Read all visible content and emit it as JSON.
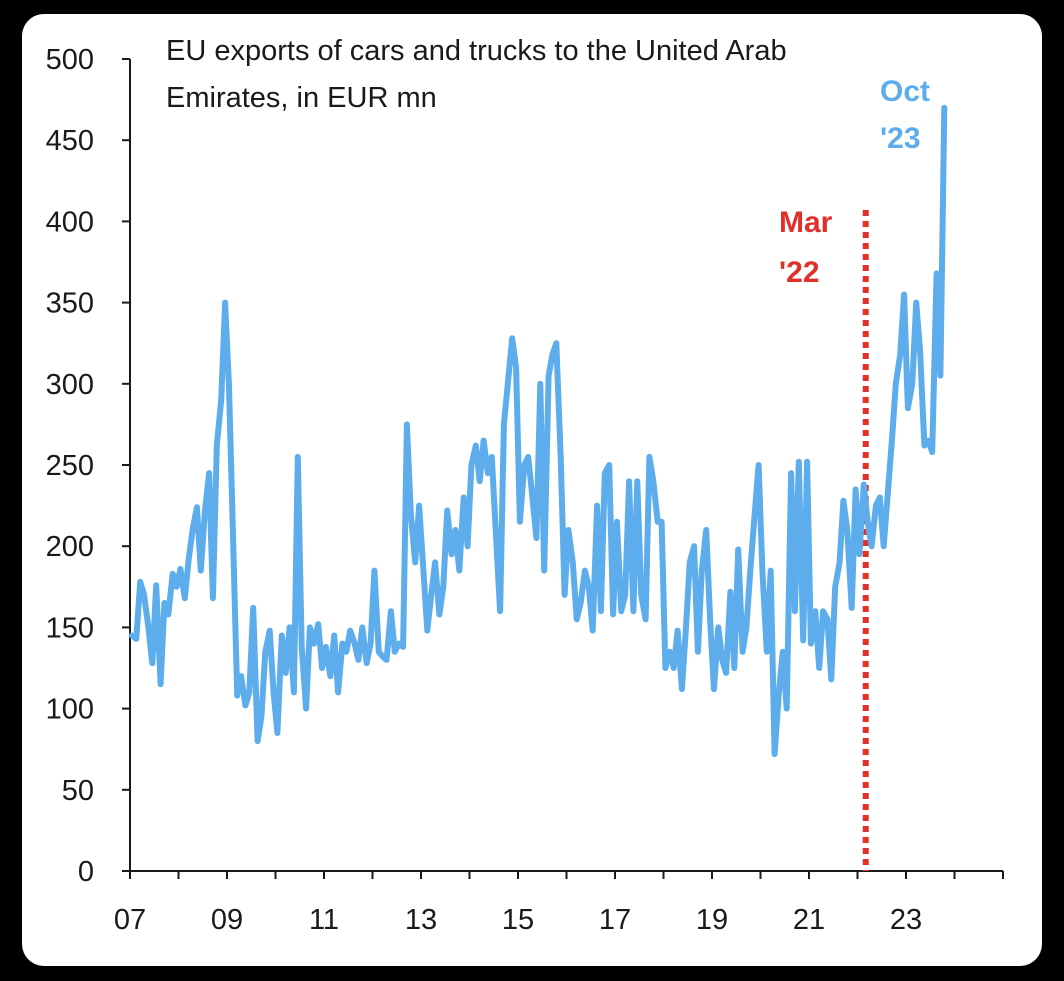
{
  "colors": {
    "series": "#5DADEC",
    "marker": "#E0302A",
    "axis": "#1a1a1a"
  },
  "chart_data": {
    "type": "line",
    "title_lines": [
      "EU exports of cars and trucks to the United Arab",
      "Emirates, in EUR mn"
    ],
    "xlabel": "",
    "ylabel": "",
    "xlim": [
      2007.0,
      2025.0
    ],
    "ylim": [
      0,
      500
    ],
    "y_ticks": [
      "0",
      "50",
      "100",
      "150",
      "200",
      "250",
      "300",
      "350",
      "400",
      "450",
      "500"
    ],
    "x_ticks": [
      "07",
      "09",
      "11",
      "13",
      "15",
      "17",
      "19",
      "21",
      "23"
    ],
    "grid": false,
    "legend": "none",
    "annotations": [
      {
        "lines": [
          "Mar",
          "'22"
        ],
        "x": 2022.17,
        "type": "vertical-dotted-line",
        "color": "#E0302A"
      },
      {
        "lines": [
          "Oct",
          "'23"
        ],
        "x": 2023.75,
        "type": "label",
        "color": "#5DADEC"
      }
    ],
    "series": [
      {
        "points": [
          [
            2007.04,
            145
          ],
          [
            2007.13,
            143
          ],
          [
            2007.21,
            178
          ],
          [
            2007.29,
            170
          ],
          [
            2007.38,
            150
          ],
          [
            2007.46,
            128
          ],
          [
            2007.54,
            176
          ],
          [
            2007.63,
            115
          ],
          [
            2007.71,
            165
          ],
          [
            2007.79,
            158
          ],
          [
            2007.88,
            183
          ],
          [
            2007.96,
            175
          ],
          [
            2008.04,
            186
          ],
          [
            2008.13,
            168
          ],
          [
            2008.21,
            192
          ],
          [
            2008.29,
            210
          ],
          [
            2008.38,
            224
          ],
          [
            2008.46,
            185
          ],
          [
            2008.54,
            220
          ],
          [
            2008.63,
            245
          ],
          [
            2008.71,
            168
          ],
          [
            2008.79,
            262
          ],
          [
            2008.88,
            290
          ],
          [
            2008.96,
            350
          ],
          [
            2009.04,
            300
          ],
          [
            2009.13,
            200
          ],
          [
            2009.21,
            108
          ],
          [
            2009.29,
            120
          ],
          [
            2009.38,
            102
          ],
          [
            2009.46,
            110
          ],
          [
            2009.54,
            162
          ],
          [
            2009.63,
            80
          ],
          [
            2009.71,
            95
          ],
          [
            2009.79,
            135
          ],
          [
            2009.88,
            148
          ],
          [
            2009.96,
            110
          ],
          [
            2010.04,
            85
          ],
          [
            2010.13,
            145
          ],
          [
            2010.21,
            122
          ],
          [
            2010.29,
            150
          ],
          [
            2010.38,
            110
          ],
          [
            2010.46,
            255
          ],
          [
            2010.54,
            138
          ],
          [
            2010.63,
            100
          ],
          [
            2010.71,
            150
          ],
          [
            2010.79,
            140
          ],
          [
            2010.88,
            152
          ],
          [
            2010.96,
            125
          ],
          [
            2011.04,
            138
          ],
          [
            2011.13,
            120
          ],
          [
            2011.21,
            145
          ],
          [
            2011.29,
            110
          ],
          [
            2011.38,
            140
          ],
          [
            2011.46,
            135
          ],
          [
            2011.54,
            148
          ],
          [
            2011.63,
            140
          ],
          [
            2011.71,
            130
          ],
          [
            2011.79,
            150
          ],
          [
            2011.88,
            128
          ],
          [
            2011.96,
            140
          ],
          [
            2012.04,
            185
          ],
          [
            2012.13,
            135
          ],
          [
            2012.21,
            132
          ],
          [
            2012.29,
            130
          ],
          [
            2012.38,
            160
          ],
          [
            2012.46,
            135
          ],
          [
            2012.54,
            140
          ],
          [
            2012.63,
            138
          ],
          [
            2012.71,
            275
          ],
          [
            2012.79,
            220
          ],
          [
            2012.88,
            190
          ],
          [
            2012.96,
            225
          ],
          [
            2013.04,
            190
          ],
          [
            2013.13,
            148
          ],
          [
            2013.21,
            170
          ],
          [
            2013.29,
            190
          ],
          [
            2013.38,
            158
          ],
          [
            2013.46,
            175
          ],
          [
            2013.54,
            222
          ],
          [
            2013.63,
            195
          ],
          [
            2013.71,
            210
          ],
          [
            2013.79,
            185
          ],
          [
            2013.88,
            230
          ],
          [
            2013.96,
            200
          ],
          [
            2014.04,
            250
          ],
          [
            2014.13,
            262
          ],
          [
            2014.21,
            240
          ],
          [
            2014.29,
            265
          ],
          [
            2014.38,
            245
          ],
          [
            2014.46,
            255
          ],
          [
            2014.54,
            210
          ],
          [
            2014.63,
            160
          ],
          [
            2014.71,
            275
          ],
          [
            2014.79,
            300
          ],
          [
            2014.88,
            328
          ],
          [
            2014.96,
            310
          ],
          [
            2015.04,
            215
          ],
          [
            2015.13,
            250
          ],
          [
            2015.21,
            255
          ],
          [
            2015.29,
            232
          ],
          [
            2015.38,
            205
          ],
          [
            2015.46,
            300
          ],
          [
            2015.54,
            185
          ],
          [
            2015.63,
            305
          ],
          [
            2015.71,
            318
          ],
          [
            2015.79,
            325
          ],
          [
            2015.88,
            255
          ],
          [
            2015.96,
            170
          ],
          [
            2016.04,
            210
          ],
          [
            2016.13,
            190
          ],
          [
            2016.21,
            155
          ],
          [
            2016.29,
            165
          ],
          [
            2016.38,
            185
          ],
          [
            2016.46,
            175
          ],
          [
            2016.54,
            148
          ],
          [
            2016.63,
            225
          ],
          [
            2016.71,
            160
          ],
          [
            2016.79,
            245
          ],
          [
            2016.88,
            250
          ],
          [
            2016.96,
            158
          ],
          [
            2017.04,
            215
          ],
          [
            2017.13,
            160
          ],
          [
            2017.21,
            170
          ],
          [
            2017.29,
            240
          ],
          [
            2017.38,
            160
          ],
          [
            2017.46,
            240
          ],
          [
            2017.54,
            170
          ],
          [
            2017.63,
            155
          ],
          [
            2017.71,
            255
          ],
          [
            2017.79,
            240
          ],
          [
            2017.88,
            215
          ],
          [
            2017.96,
            215
          ],
          [
            2018.04,
            125
          ],
          [
            2018.13,
            135
          ],
          [
            2018.21,
            125
          ],
          [
            2018.29,
            148
          ],
          [
            2018.38,
            112
          ],
          [
            2018.46,
            148
          ],
          [
            2018.54,
            190
          ],
          [
            2018.63,
            200
          ],
          [
            2018.71,
            135
          ],
          [
            2018.79,
            185
          ],
          [
            2018.88,
            210
          ],
          [
            2018.96,
            155
          ],
          [
            2019.04,
            112
          ],
          [
            2019.13,
            150
          ],
          [
            2019.21,
            130
          ],
          [
            2019.29,
            122
          ],
          [
            2019.38,
            172
          ],
          [
            2019.46,
            125
          ],
          [
            2019.54,
            198
          ],
          [
            2019.63,
            135
          ],
          [
            2019.71,
            150
          ],
          [
            2019.79,
            185
          ],
          [
            2019.88,
            220
          ],
          [
            2019.96,
            250
          ],
          [
            2020.04,
            185
          ],
          [
            2020.13,
            135
          ],
          [
            2020.21,
            185
          ],
          [
            2020.29,
            72
          ],
          [
            2020.38,
            110
          ],
          [
            2020.46,
            135
          ],
          [
            2020.54,
            100
          ],
          [
            2020.63,
            245
          ],
          [
            2020.71,
            160
          ],
          [
            2020.79,
            252
          ],
          [
            2020.88,
            142
          ],
          [
            2020.96,
            252
          ],
          [
            2021.04,
            140
          ],
          [
            2021.13,
            160
          ],
          [
            2021.21,
            125
          ],
          [
            2021.29,
            160
          ],
          [
            2021.38,
            155
          ],
          [
            2021.46,
            118
          ],
          [
            2021.54,
            175
          ],
          [
            2021.63,
            190
          ],
          [
            2021.71,
            228
          ],
          [
            2021.79,
            210
          ],
          [
            2021.88,
            162
          ],
          [
            2021.96,
            235
          ],
          [
            2022.04,
            195
          ],
          [
            2022.13,
            238
          ],
          [
            2022.21,
            215
          ],
          [
            2022.29,
            200
          ],
          [
            2022.38,
            225
          ],
          [
            2022.46,
            230
          ],
          [
            2022.54,
            200
          ],
          [
            2022.63,
            235
          ],
          [
            2022.71,
            265
          ],
          [
            2022.79,
            300
          ],
          [
            2022.88,
            318
          ],
          [
            2022.96,
            355
          ],
          [
            2023.04,
            285
          ],
          [
            2023.13,
            300
          ],
          [
            2023.21,
            350
          ],
          [
            2023.29,
            320
          ],
          [
            2023.38,
            262
          ],
          [
            2023.46,
            265
          ],
          [
            2023.54,
            258
          ],
          [
            2023.63,
            368
          ],
          [
            2023.71,
            305
          ],
          [
            2023.79,
            470
          ]
        ]
      }
    ]
  }
}
